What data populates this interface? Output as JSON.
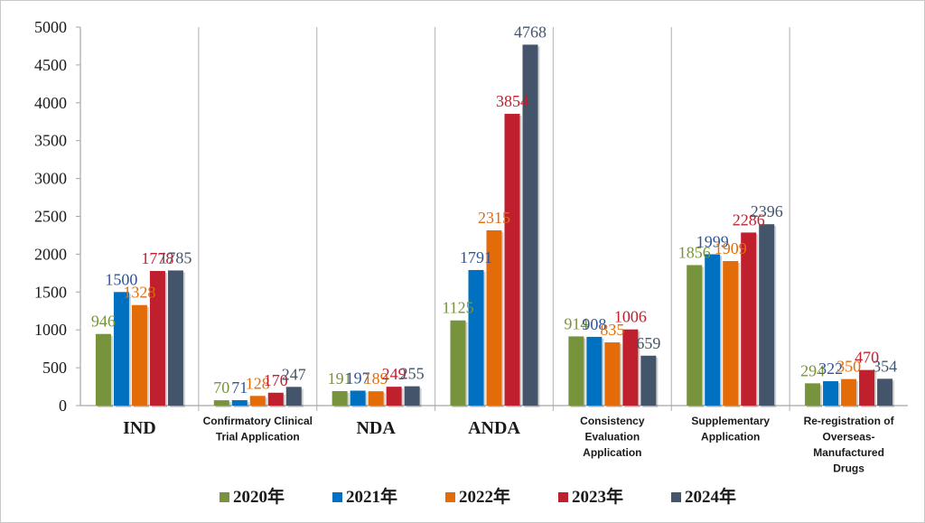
{
  "chart_data": {
    "type": "bar",
    "title": "",
    "xlabel": "",
    "ylabel": "",
    "ylim": [
      0,
      5000
    ],
    "yticks": [
      0,
      500,
      1000,
      1500,
      2000,
      2500,
      3000,
      3500,
      4000,
      4500,
      5000
    ],
    "categories": [
      "IND",
      "Confirmatory Clinical Trial Application",
      "NDA",
      "ANDA",
      "Consistency Evaluation Application",
      "Supplementary Application",
      "Re-registration of Overseas-Manufactured Drugs"
    ],
    "category_lines": [
      [
        "IND"
      ],
      [
        "Confirmatory Clinical",
        "Trial Application"
      ],
      [
        "NDA"
      ],
      [
        "ANDA"
      ],
      [
        "Consistency",
        "Evaluation",
        "Application"
      ],
      [
        "Supplementary",
        "Application"
      ],
      [
        "Re-registration of",
        "Overseas-",
        "Manufactured",
        "Drugs"
      ]
    ],
    "category_styles": [
      "serif",
      "sans",
      "serif",
      "serif",
      "sans",
      "sans",
      "sans"
    ],
    "series": [
      {
        "name": "2020年",
        "color": "#77933c",
        "values": [
          946,
          70,
          191,
          1125,
          914,
          1856,
          294
        ]
      },
      {
        "name": "2021年",
        "color": "#0070c0",
        "values": [
          1500,
          71,
          197,
          1791,
          908,
          1999,
          322
        ]
      },
      {
        "name": "2022年",
        "color": "#e36c09",
        "values": [
          1328,
          128,
          189,
          2315,
          835,
          1909,
          350
        ]
      },
      {
        "name": "2023年",
        "color": "#c0202e",
        "values": [
          1778,
          170,
          249,
          3854,
          1006,
          2286,
          470
        ]
      },
      {
        "name": "2024年",
        "color": "#44546a",
        "values": [
          1785,
          247,
          255,
          4768,
          659,
          2396,
          354
        ]
      }
    ],
    "label_colors": {
      "2020年": "#77933c",
      "2021年": "#2f5597",
      "2022年": "#e36c09",
      "2023年": "#c0202e",
      "2024年": "#44546a"
    },
    "grid": false,
    "legend": "bottom"
  }
}
